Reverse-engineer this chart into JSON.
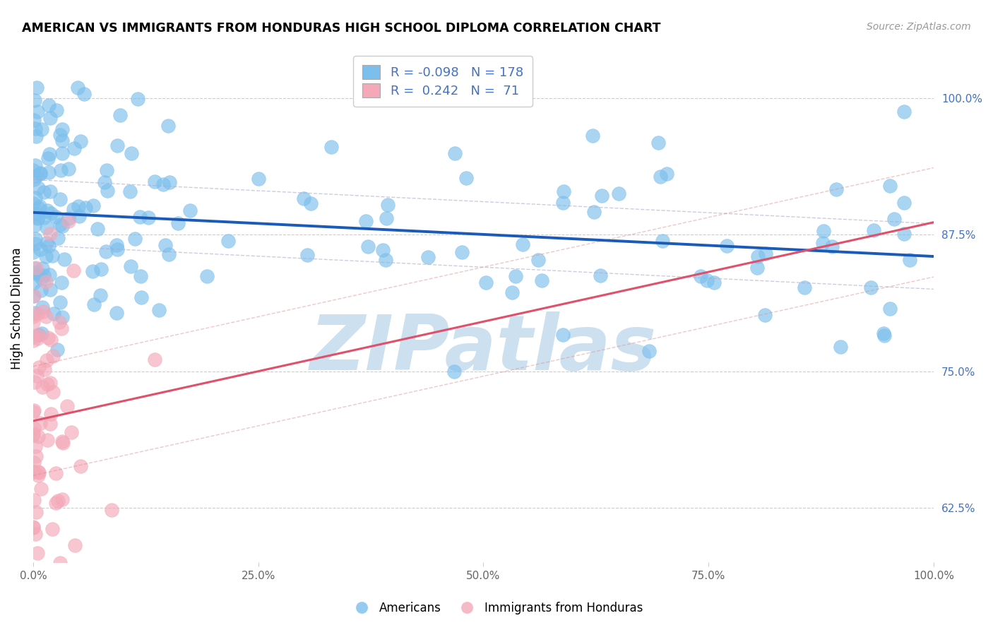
{
  "title": "AMERICAN VS IMMIGRANTS FROM HONDURAS HIGH SCHOOL DIPLOMA CORRELATION CHART",
  "source": "Source: ZipAtlas.com",
  "ylabel": "High School Diploma",
  "ytick_labels": [
    "62.5%",
    "75.0%",
    "87.5%",
    "100.0%"
  ],
  "ytick_values": [
    0.625,
    0.75,
    0.875,
    1.0
  ],
  "xlim": [
    0.0,
    1.0
  ],
  "ylim": [
    0.575,
    1.04
  ],
  "legend_R_blue": "-0.098",
  "legend_N_blue": "178",
  "legend_R_pink": "0.242",
  "legend_N_pink": "71",
  "blue_color": "#7bbfed",
  "pink_color": "#f4a8b8",
  "trend_blue": "#1a5ab8",
  "trend_pink": "#e0506a",
  "ci_blue": "#aaaacc",
  "ci_pink": "#e09090",
  "watermark": "ZIPatlas",
  "watermark_color": "#cce0f0",
  "background_color": "#ffffff",
  "n_blue": 178,
  "n_pink": 71,
  "R_blue": -0.098,
  "R_pink": 0.242
}
